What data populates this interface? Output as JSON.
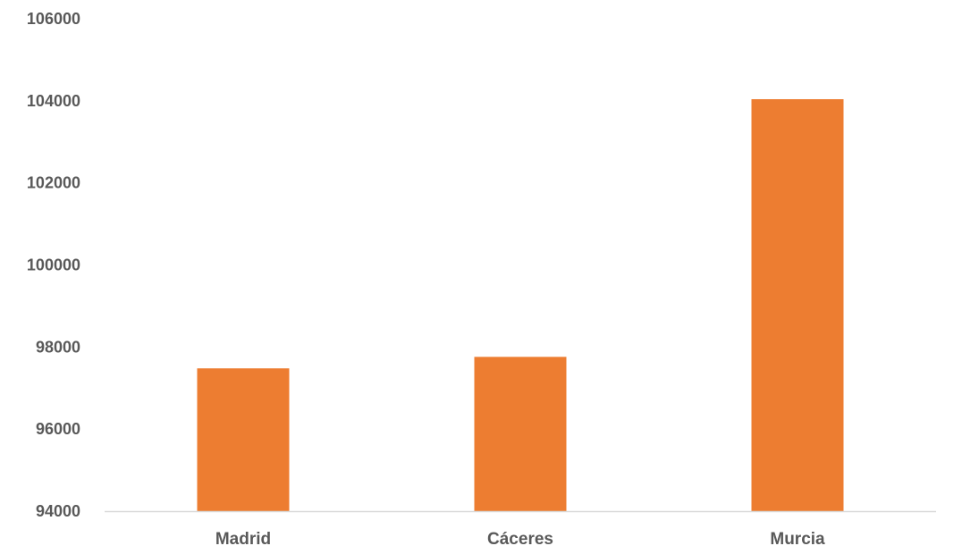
{
  "chart_data": {
    "type": "bar",
    "title": "",
    "xlabel": "",
    "ylabel": "",
    "categories": [
      "Madrid",
      "Cáceres",
      "Murcia"
    ],
    "values": [
      97480,
      97760,
      104040
    ],
    "ylim": [
      94000,
      106000
    ],
    "yticks": [
      "94000",
      "96000",
      "98000",
      "100000",
      "102000",
      "104000",
      "106000"
    ],
    "grid": false,
    "legend": "none",
    "colors": {
      "bar": "#ED7D31",
      "axis": "#D9D9D9",
      "text": "#595959"
    }
  }
}
